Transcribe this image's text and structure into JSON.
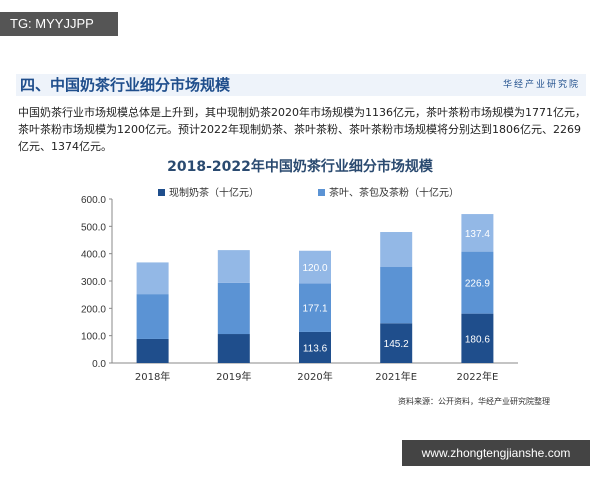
{
  "badge": "TG: MYYJJPP",
  "watermark": "www.zhongtengjianshe.com",
  "header": {
    "title": "四、中国奶茶行业细分市场规模",
    "logo": "华经产业研究院"
  },
  "paragraph": "中国奶茶行业市场规模总体是上升到，其中现制奶茶2020年市场规模为1136亿元，茶叶茶粉市场规模为1771亿元，茶叶茶粉市场规模为1200亿元。预计2022年现制奶茶、茶叶茶粉、茶叶茶粉市场规模将分别达到1806亿元、2269亿元、1374亿元。",
  "source": "资料来源：公开资料，华经产业研究院整理",
  "chart_data": {
    "type": "bar",
    "stacked": true,
    "title": "2018-2022年中国奶茶行业细分市场规模",
    "categories": [
      "2018年",
      "2019年",
      "2020年",
      "2021年E",
      "2022年E"
    ],
    "ylim": [
      0,
      600
    ],
    "yticks": [
      "0.0",
      "100.0",
      "200.0",
      "300.0",
      "400.0",
      "500.0",
      "600.0"
    ],
    "legend_position": "top",
    "series": [
      {
        "name": "现制奶茶（十亿元）",
        "color": "#1f4e8c",
        "values": [
          88,
          106,
          113.6,
          145.2,
          180.6
        ],
        "labels": [
          null,
          null,
          "113.6",
          "145.2",
          "180.6"
        ]
      },
      {
        "name": "茶叶、茶包及茶粉（十亿元）",
        "color": "#5b93d4",
        "values": [
          164,
          187,
          177.1,
          206,
          226.9
        ],
        "labels": [
          null,
          null,
          "177.1",
          null,
          "226.9"
        ]
      },
      {
        "color": "#93b8e6",
        "values": [
          116,
          120,
          120.0,
          128,
          137.4
        ],
        "labels": [
          null,
          null,
          "120.0",
          null,
          "137.4"
        ]
      }
    ]
  }
}
